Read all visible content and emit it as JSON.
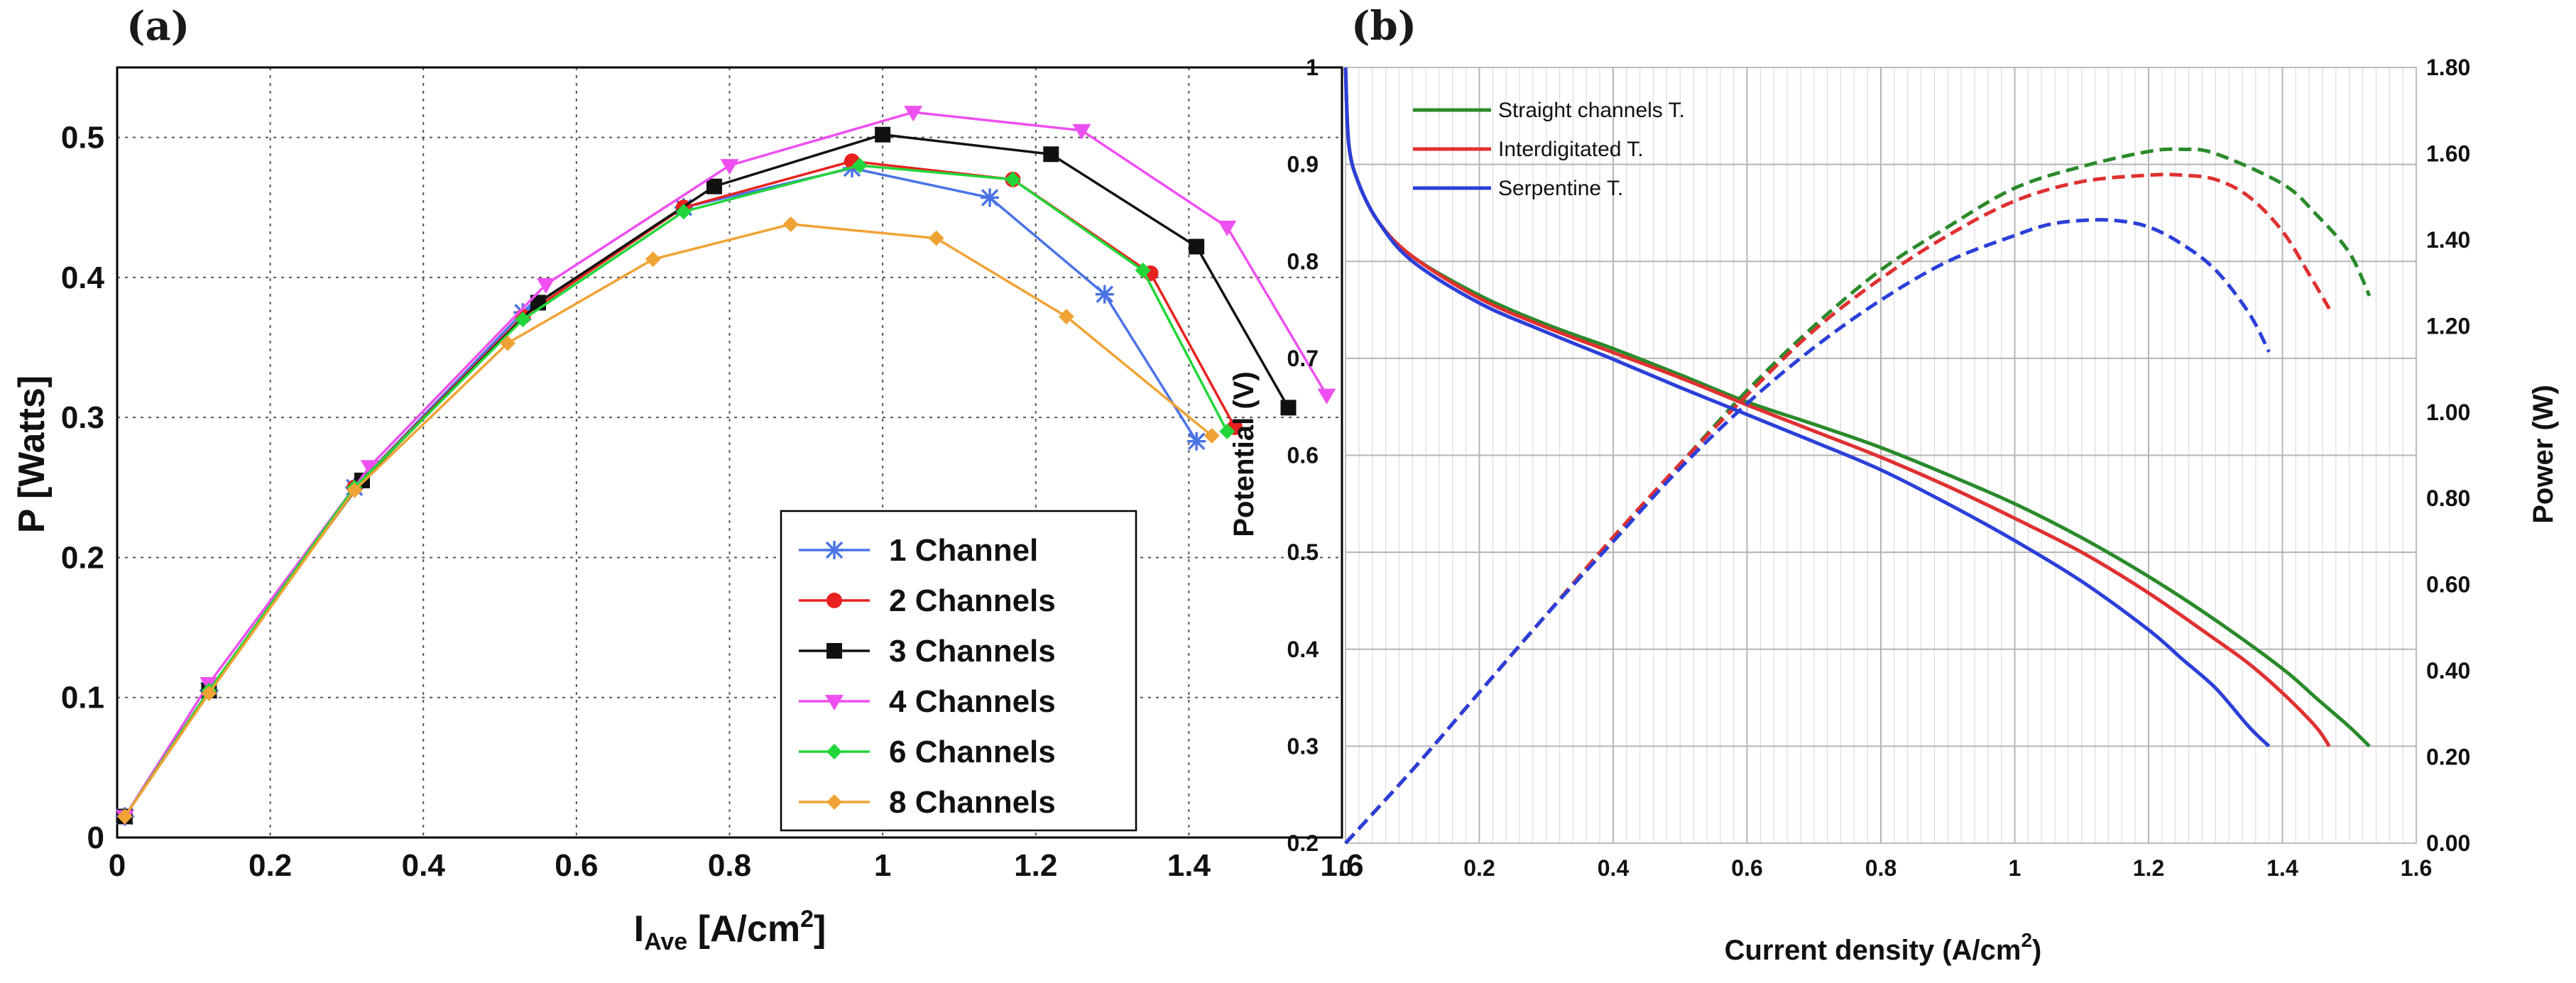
{
  "chart_data": [
    {
      "type": "line",
      "panel_label": "(a)",
      "xlabel_main": "I",
      "xlabel_sub": "Ave",
      "xlabel_rest": " [A/cm",
      "xlabel_sup": "2",
      "xlabel_close": "]",
      "ylabel": "P [Watts]",
      "xlim": [
        0,
        1.6
      ],
      "ylim": [
        0,
        0.55
      ],
      "xticks": [
        "0",
        "0.2",
        "0.4",
        "0.6",
        "0.8",
        "1",
        "1.2",
        "1.4",
        "1.6"
      ],
      "yticks": [
        "0",
        "0.1",
        "0.2",
        "0.3",
        "0.4",
        "0.5"
      ],
      "grid": true,
      "legend_position": "bottom-right",
      "series": [
        {
          "name": "1 Channel",
          "color": "#4a73e6",
          "marker": "star",
          "x": [
            0.01,
            0.12,
            0.31,
            0.53,
            0.74,
            0.96,
            1.14,
            1.29,
            1.41
          ],
          "y": [
            0.015,
            0.105,
            0.25,
            0.375,
            0.45,
            0.478,
            0.457,
            0.388,
            0.283
          ]
        },
        {
          "name": "2 Channels",
          "color": "#e8211f",
          "marker": "circle",
          "x": [
            0.01,
            0.12,
            0.31,
            0.53,
            0.74,
            0.96,
            1.17,
            1.35,
            1.46
          ],
          "y": [
            0.015,
            0.105,
            0.25,
            0.372,
            0.45,
            0.483,
            0.47,
            0.403,
            0.293
          ]
        },
        {
          "name": "3 Channels",
          "color": "#111111",
          "marker": "square",
          "x": [
            0.01,
            0.12,
            0.32,
            0.55,
            0.78,
            1.0,
            1.22,
            1.41,
            1.53
          ],
          "y": [
            0.015,
            0.105,
            0.255,
            0.382,
            0.465,
            0.502,
            0.488,
            0.422,
            0.307
          ]
        },
        {
          "name": "4 Channels",
          "color": "#ee4ff0",
          "marker": "triangle-down",
          "x": [
            0.01,
            0.12,
            0.33,
            0.56,
            0.8,
            1.04,
            1.26,
            1.45,
            1.58
          ],
          "y": [
            0.015,
            0.11,
            0.265,
            0.395,
            0.48,
            0.518,
            0.505,
            0.436,
            0.316
          ]
        },
        {
          "name": "6 Channels",
          "color": "#22d63a",
          "marker": "diamond",
          "x": [
            0.01,
            0.12,
            0.31,
            0.53,
            0.74,
            0.97,
            1.17,
            1.34,
            1.45
          ],
          "y": [
            0.015,
            0.105,
            0.25,
            0.37,
            0.447,
            0.48,
            0.47,
            0.405,
            0.29
          ]
        },
        {
          "name": "8 Channels",
          "color": "#f0a335",
          "marker": "diamond-filled",
          "x": [
            0.01,
            0.12,
            0.31,
            0.51,
            0.7,
            0.88,
            1.07,
            1.24,
            1.43
          ],
          "y": [
            0.015,
            0.103,
            0.248,
            0.353,
            0.413,
            0.438,
            0.428,
            0.372,
            0.287
          ]
        }
      ]
    },
    {
      "type": "line",
      "panel_label": "(b)",
      "xlabel_main": "Current density (A/cm",
      "xlabel_sup": "2",
      "xlabel_close": ")",
      "ylabel": "Potential (V)",
      "y2label": "Power (W)",
      "xlim": [
        0,
        1.6
      ],
      "ylim": [
        0.2,
        1.0
      ],
      "y2lim": [
        0,
        1.8
      ],
      "xticks": [
        "0",
        "0.2",
        "0.4",
        "0.6",
        "0.8",
        "1",
        "1.2",
        "1.4",
        "1.6"
      ],
      "yticks": [
        "0.2",
        "0.3",
        "0.4",
        "0.5",
        "0.6",
        "0.7",
        "0.8",
        "0.9",
        "1"
      ],
      "y2ticks": [
        "0.00",
        "0.20",
        "0.40",
        "0.60",
        "0.80",
        "1.00",
        "1.20",
        "1.40",
        "1.60",
        "1.80"
      ],
      "grid": true,
      "legend_position": "top-left",
      "series": [
        {
          "name": "Straight channels T.",
          "color": "#2a8a2a",
          "potential_x": [
            0,
            0.005,
            0.02,
            0.05,
            0.1,
            0.2,
            0.3,
            0.4,
            0.5,
            0.6,
            0.7,
            0.8,
            0.9,
            1.0,
            1.1,
            1.2,
            1.3,
            1.4,
            1.45,
            1.5,
            1.53
          ],
          "potential_y": [
            1.0,
            0.92,
            0.88,
            0.84,
            0.805,
            0.765,
            0.735,
            0.71,
            0.683,
            0.655,
            0.632,
            0.608,
            0.58,
            0.55,
            0.515,
            0.475,
            0.43,
            0.38,
            0.35,
            0.32,
            0.3
          ],
          "power_x": [
            0,
            0.1,
            0.2,
            0.3,
            0.4,
            0.5,
            0.6,
            0.7,
            0.8,
            0.9,
            1.0,
            1.1,
            1.2,
            1.25,
            1.3,
            1.4,
            1.45,
            1.5,
            1.53
          ],
          "power_y": [
            0,
            0.17,
            0.35,
            0.53,
            0.71,
            0.88,
            1.05,
            1.2,
            1.33,
            1.43,
            1.52,
            1.57,
            1.605,
            1.61,
            1.6,
            1.53,
            1.46,
            1.37,
            1.27
          ]
        },
        {
          "name": "Interdigitated T.",
          "color": "#e03030",
          "potential_x": [
            0,
            0.005,
            0.02,
            0.05,
            0.1,
            0.2,
            0.3,
            0.4,
            0.5,
            0.6,
            0.7,
            0.8,
            0.9,
            1.0,
            1.1,
            1.2,
            1.3,
            1.35,
            1.4,
            1.45,
            1.47
          ],
          "potential_y": [
            1.0,
            0.92,
            0.88,
            0.84,
            0.805,
            0.762,
            0.732,
            0.706,
            0.68,
            0.652,
            0.625,
            0.598,
            0.568,
            0.535,
            0.5,
            0.458,
            0.41,
            0.385,
            0.355,
            0.32,
            0.3
          ],
          "power_x": [
            0,
            0.1,
            0.2,
            0.3,
            0.4,
            0.5,
            0.6,
            0.7,
            0.8,
            0.9,
            1.0,
            1.1,
            1.2,
            1.25,
            1.3,
            1.35,
            1.4,
            1.44,
            1.47
          ],
          "power_y": [
            0,
            0.17,
            0.35,
            0.53,
            0.71,
            0.88,
            1.04,
            1.19,
            1.31,
            1.41,
            1.49,
            1.535,
            1.55,
            1.55,
            1.54,
            1.5,
            1.42,
            1.32,
            1.24
          ]
        },
        {
          "name": "Serpentine T.",
          "color": "#2b3fd9",
          "potential_x": [
            0,
            0.005,
            0.02,
            0.05,
            0.1,
            0.2,
            0.3,
            0.4,
            0.5,
            0.6,
            0.7,
            0.8,
            0.9,
            1.0,
            1.1,
            1.2,
            1.25,
            1.3,
            1.35,
            1.38
          ],
          "potential_y": [
            1.0,
            0.92,
            0.88,
            0.84,
            0.8,
            0.757,
            0.727,
            0.699,
            0.67,
            0.642,
            0.614,
            0.585,
            0.55,
            0.512,
            0.47,
            0.42,
            0.39,
            0.36,
            0.32,
            0.3
          ],
          "power_x": [
            0,
            0.1,
            0.2,
            0.3,
            0.4,
            0.5,
            0.6,
            0.7,
            0.8,
            0.9,
            1.0,
            1.05,
            1.1,
            1.15,
            1.2,
            1.25,
            1.3,
            1.35,
            1.38
          ],
          "power_y": [
            0,
            0.17,
            0.35,
            0.53,
            0.7,
            0.87,
            1.02,
            1.15,
            1.26,
            1.35,
            1.41,
            1.435,
            1.445,
            1.445,
            1.43,
            1.39,
            1.33,
            1.23,
            1.14
          ]
        }
      ]
    }
  ]
}
